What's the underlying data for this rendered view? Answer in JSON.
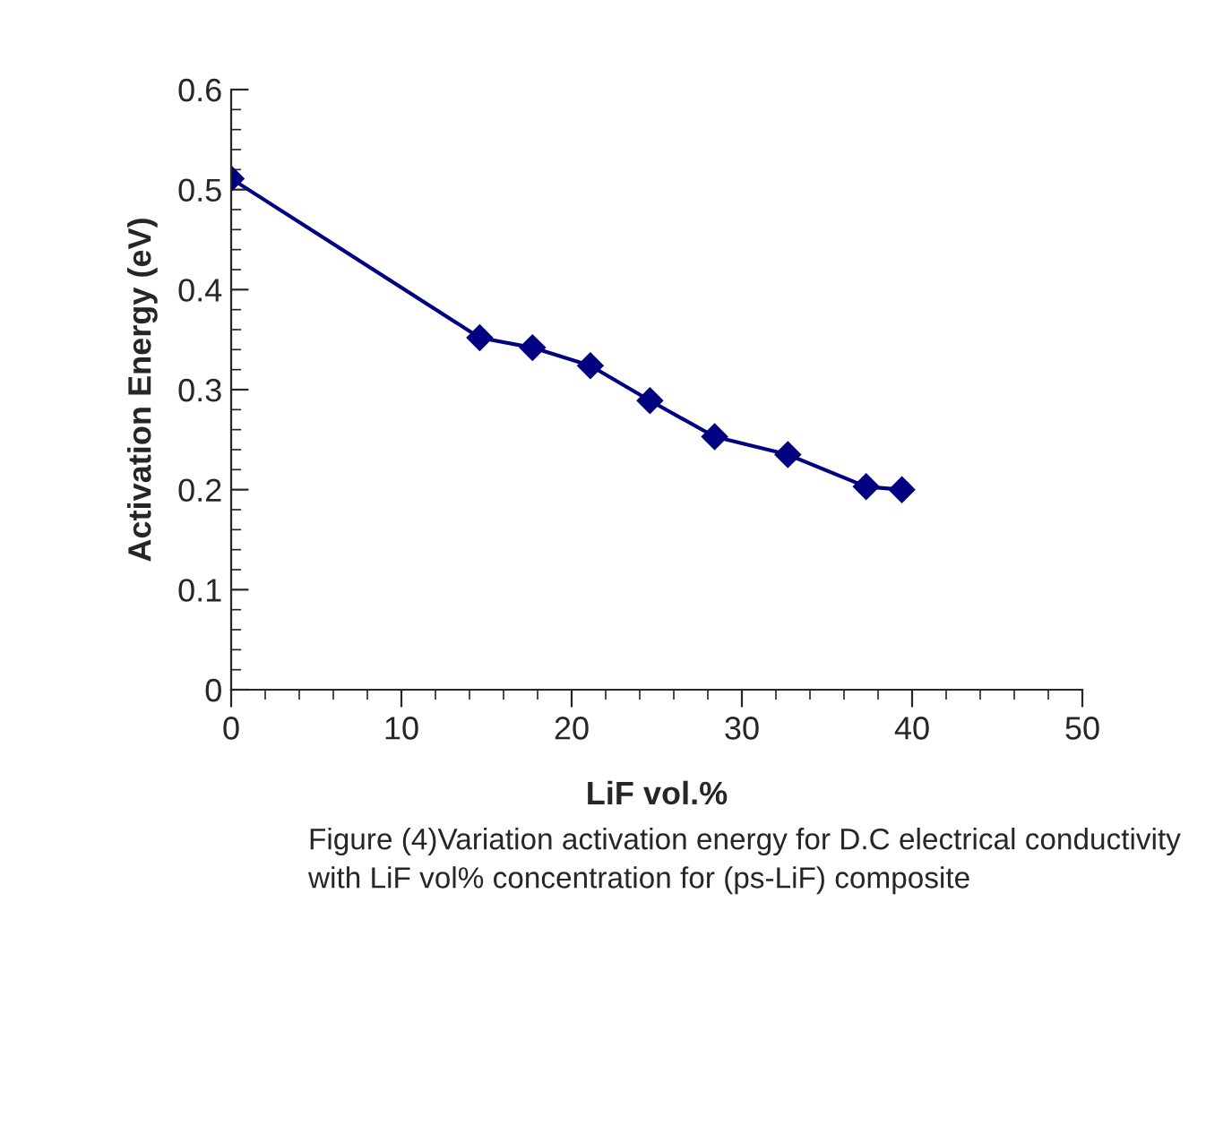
{
  "chart_data": {
    "type": "line",
    "xlabel": "LiF vol.%",
    "ylabel": "Activation Energy (eV)",
    "x": [
      0,
      14.6,
      17.7,
      21.1,
      24.6,
      28.4,
      32.7,
      37.3,
      39.4
    ],
    "series": [
      {
        "color": "#000080",
        "values": [
          0.511,
          0.352,
          0.342,
          0.324,
          0.289,
          0.253,
          0.235,
          0.203,
          0.2
        ]
      }
    ],
    "xlim": [
      0,
      50
    ],
    "xticks": [
      0,
      10,
      20,
      30,
      40,
      50
    ],
    "ylim": [
      0,
      0.6
    ],
    "yticks": [
      0,
      0.1,
      0.2,
      0.3,
      0.4,
      0.5,
      0.6
    ],
    "marker": "diamond",
    "line_style": "solid",
    "grid": false,
    "legend": false,
    "annotations": [
      "Figure (4)Variation activation energy for D.C electrical conductivity with LiF vol% concentration for (ps-LiF) composite"
    ]
  }
}
